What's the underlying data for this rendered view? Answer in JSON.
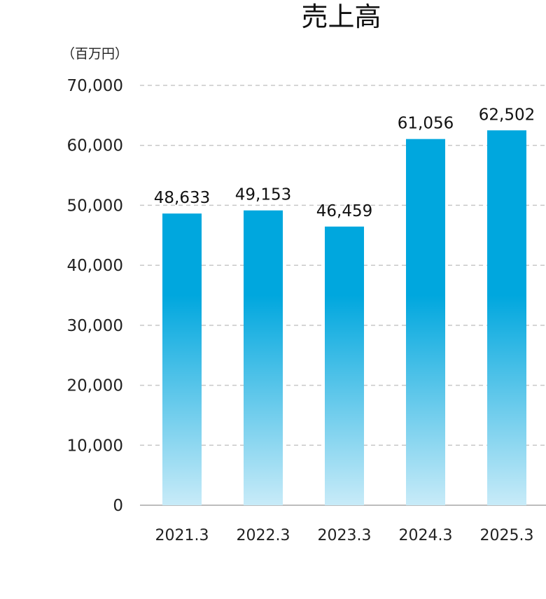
{
  "chart_data": {
    "type": "bar",
    "title": "売上高",
    "unit_label": "（百万円）",
    "categories": [
      "2021.3",
      "2022.3",
      "2023.3",
      "2024.3",
      "2025.3"
    ],
    "values": [
      48633,
      49153,
      46459,
      61056,
      62502
    ],
    "value_labels": [
      "48,633",
      "49,153",
      "46,459",
      "61,056",
      "62,502"
    ],
    "ylim": [
      0,
      70000
    ],
    "yticks": [
      0,
      10000,
      20000,
      30000,
      40000,
      50000,
      60000,
      70000
    ],
    "ytick_labels": [
      "0",
      "10,000",
      "20,000",
      "30,000",
      "40,000",
      "50,000",
      "60,000",
      "70,000"
    ],
    "grid": true,
    "legend": "none",
    "colors": {
      "bar_top": "#00a7de",
      "bar_bottom": "#c8ebf8",
      "grid": "#c8c8c8",
      "axis": "#bdbdbd"
    }
  }
}
